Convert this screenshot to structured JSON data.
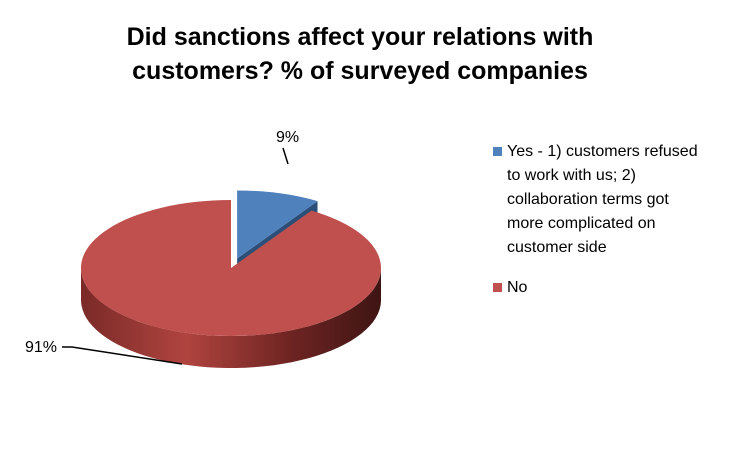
{
  "chart_data": {
    "type": "pie",
    "title": "Did sanctions affect your relations with customers? % of surveyed companies",
    "title_lines": [
      "Did sanctions affect your relations with",
      "customers? % of surveyed companies"
    ],
    "slices": [
      {
        "label": "Yes - 1) customers refused to work with us; 2) collaboration terms got more complicated on customer side",
        "legend_lines": [
          "Yes - 1) customers refused",
          "to work with us; 2)",
          "collaboration terms got",
          "more complicated on",
          "customer side"
        ],
        "value": 9,
        "data_label": "9%",
        "color": "#4F81BD",
        "exploded": true
      },
      {
        "label": "No",
        "legend_lines": [
          "No"
        ],
        "value": 91,
        "data_label": "91%",
        "color": "#C0504D",
        "exploded": false
      }
    ],
    "three_d": true,
    "legend_position": "right"
  }
}
